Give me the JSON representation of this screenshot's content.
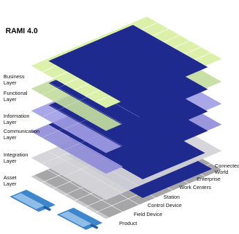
{
  "title": "RAMI 4.0",
  "layers": [
    {
      "label_line1": "Business",
      "label_line2": "Layer"
    },
    {
      "label_line1": "Functional",
      "label_line2": "Layer"
    },
    {
      "label_line1": "Information",
      "label_line2": "Layer"
    },
    {
      "label_line1": "Communication",
      "label_line2": "Layer"
    },
    {
      "label_line1": "Integration",
      "label_line2": "Layer"
    },
    {
      "label_line1": "Asset",
      "label_line2": "Layer"
    }
  ],
  "hierarchy_levels": [
    {
      "label_line1": "Product",
      "label_line2": ""
    },
    {
      "label_line1": "Field Device",
      "label_line2": ""
    },
    {
      "label_line1": "Control Device",
      "label_line2": ""
    },
    {
      "label_line1": "Station",
      "label_line2": ""
    },
    {
      "label_line1": "Work Centers",
      "label_line2": ""
    },
    {
      "label_line1": "Enterprise",
      "label_line2": ""
    },
    {
      "label_line1": "Connected",
      "label_line2": "World"
    }
  ],
  "colors": {
    "navy": "#1f2a8f",
    "business": "#d9efa4",
    "functional": "#c3dc9a",
    "information": "#9a96e2",
    "communication": "#8f8bd8",
    "integration": "#d2d2d6",
    "asset": "#a3a3a6",
    "grid_line": "#ffffff"
  }
}
